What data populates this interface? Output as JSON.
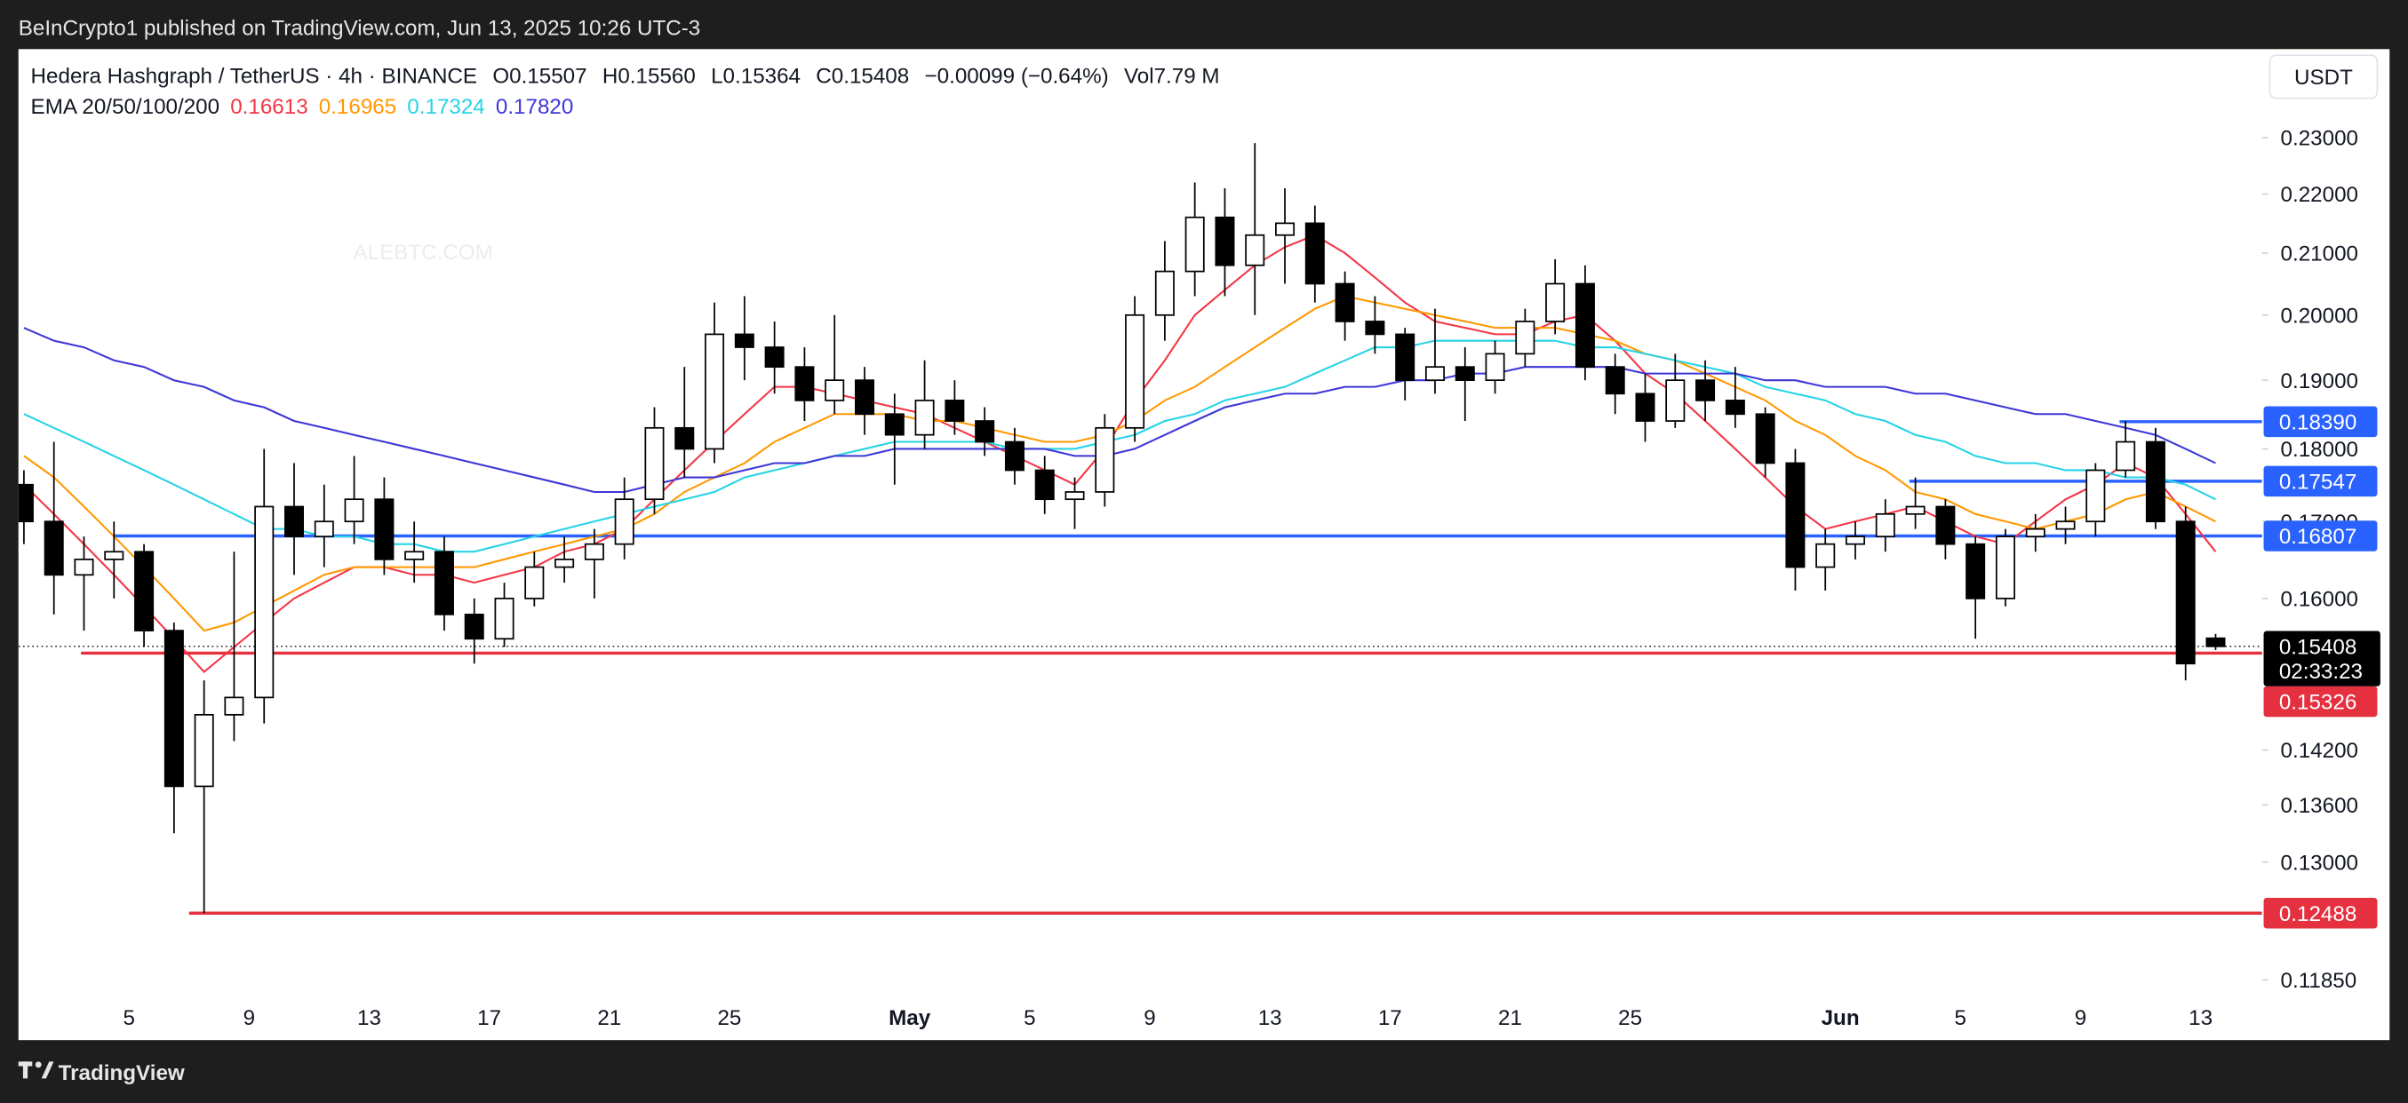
{
  "header": {
    "published": "BeInCrypto1 published on TradingView.com, Jun 13, 2025 10:26 UTC-3",
    "brand": "TradingView"
  },
  "chart_data": {
    "type": "candlestick",
    "symbol": "Hedera Hashgraph / TetherUS · 4h · BINANCE",
    "quote": [
      "O0.15507",
      "H0.15560",
      "L0.15364",
      "C0.15408",
      "−0.00099 (−0.64%)",
      "Vol7.79 M"
    ],
    "indicator": "EMA 20/50/100/200",
    "currency": "USDT",
    "watermark": "ALEBTC.COM",
    "categories": [
      null,
      null,
      null,
      null,
      "5",
      null,
      null,
      null,
      "9",
      null,
      null,
      null,
      "13",
      null,
      null,
      null,
      "17",
      null,
      null,
      null,
      "21",
      null,
      null,
      null,
      "25",
      null,
      null,
      null,
      null,
      null,
      "May",
      null,
      null,
      null,
      "5",
      null,
      null,
      null,
      "9",
      null,
      null,
      null,
      "13",
      null,
      null,
      null,
      "17",
      null,
      null,
      null,
      "21",
      null,
      null,
      null,
      "25",
      null,
      null,
      null,
      null,
      null,
      null,
      "Jun",
      null,
      null,
      null,
      "5",
      null,
      null,
      null,
      "9",
      null,
      null,
      null,
      "13"
    ],
    "open": [
      0.175,
      0.17,
      0.163,
      0.165,
      0.166,
      0.156,
      0.138,
      0.146,
      0.148,
      0.172,
      0.168,
      0.17,
      0.173,
      0.165,
      0.166,
      0.158,
      0.155,
      0.16,
      0.164,
      0.165,
      0.167,
      0.173,
      0.183,
      0.18,
      0.197,
      0.195,
      0.192,
      0.187,
      0.19,
      0.185,
      0.182,
      0.187,
      0.184,
      0.181,
      0.177,
      0.173,
      0.174,
      0.183,
      0.2,
      0.207,
      0.216,
      0.208,
      0.213,
      0.215,
      0.205,
      0.199,
      0.197,
      0.19,
      0.192,
      0.19,
      0.194,
      0.199,
      0.205,
      0.192,
      0.188,
      0.184,
      0.19,
      0.187,
      0.185,
      0.178,
      0.164,
      0.167,
      0.168,
      0.171,
      0.172,
      0.167,
      0.16,
      0.168,
      0.169,
      0.17,
      0.177,
      0.181,
      0.17,
      0.15507
    ],
    "high": [
      0.177,
      0.181,
      0.168,
      0.17,
      0.167,
      0.157,
      0.15,
      0.166,
      0.18,
      0.178,
      0.175,
      0.179,
      0.176,
      0.17,
      0.168,
      0.16,
      0.162,
      0.166,
      0.168,
      0.169,
      0.176,
      0.186,
      0.192,
      0.202,
      0.203,
      0.199,
      0.195,
      0.2,
      0.192,
      0.188,
      0.193,
      0.19,
      0.186,
      0.183,
      0.179,
      0.176,
      0.185,
      0.203,
      0.212,
      0.222,
      0.221,
      0.229,
      0.221,
      0.218,
      0.207,
      0.203,
      0.198,
      0.201,
      0.195,
      0.196,
      0.201,
      0.209,
      0.208,
      0.194,
      0.191,
      0.194,
      0.193,
      0.192,
      0.186,
      0.18,
      0.169,
      0.17,
      0.173,
      0.176,
      0.173,
      0.168,
      0.169,
      0.171,
      0.172,
      0.178,
      0.184,
      0.183,
      0.172,
      0.1556
    ],
    "low": [
      0.167,
      0.158,
      0.156,
      0.16,
      0.154,
      0.133,
      0.1249,
      0.143,
      0.145,
      0.163,
      0.164,
      0.167,
      0.163,
      0.162,
      0.156,
      0.152,
      0.154,
      0.159,
      0.162,
      0.16,
      0.165,
      0.171,
      0.176,
      0.178,
      0.19,
      0.188,
      0.184,
      0.185,
      0.182,
      0.175,
      0.18,
      0.182,
      0.179,
      0.175,
      0.171,
      0.169,
      0.172,
      0.181,
      0.196,
      0.203,
      0.203,
      0.2,
      0.205,
      0.202,
      0.196,
      0.194,
      0.187,
      0.188,
      0.184,
      0.188,
      0.192,
      0.197,
      0.19,
      0.185,
      0.181,
      0.183,
      0.184,
      0.183,
      0.176,
      0.161,
      0.161,
      0.165,
      0.166,
      0.169,
      0.165,
      0.155,
      0.159,
      0.166,
      0.167,
      0.168,
      0.176,
      0.169,
      0.15,
      0.15364
    ],
    "close": [
      0.17,
      0.163,
      0.165,
      0.166,
      0.156,
      0.138,
      0.146,
      0.148,
      0.172,
      0.168,
      0.17,
      0.173,
      0.165,
      0.166,
      0.158,
      0.155,
      0.16,
      0.164,
      0.165,
      0.167,
      0.173,
      0.183,
      0.18,
      0.197,
      0.195,
      0.192,
      0.187,
      0.19,
      0.185,
      0.182,
      0.187,
      0.184,
      0.181,
      0.177,
      0.173,
      0.174,
      0.183,
      0.2,
      0.207,
      0.216,
      0.208,
      0.213,
      0.215,
      0.205,
      0.199,
      0.197,
      0.19,
      0.192,
      0.19,
      0.194,
      0.199,
      0.205,
      0.192,
      0.188,
      0.184,
      0.19,
      0.187,
      0.185,
      0.178,
      0.164,
      0.167,
      0.168,
      0.171,
      0.172,
      0.167,
      0.16,
      0.168,
      0.169,
      0.17,
      0.177,
      0.181,
      0.17,
      0.152,
      0.15408
    ],
    "up_color": "#ffffff",
    "down_color": "#000000",
    "series": [
      {
        "color": "#f23645",
        "legend_value": "0.16613",
        "values": [
          0.175,
          0.171,
          0.167,
          0.163,
          0.159,
          0.155,
          0.151,
          0.154,
          0.157,
          0.16,
          0.162,
          0.164,
          0.164,
          0.163,
          0.163,
          0.162,
          0.163,
          0.164,
          0.166,
          0.167,
          0.169,
          0.173,
          0.177,
          0.181,
          0.185,
          0.189,
          0.189,
          0.188,
          0.187,
          0.186,
          0.185,
          0.183,
          0.181,
          0.179,
          0.177,
          0.175,
          0.18,
          0.187,
          0.193,
          0.2,
          0.204,
          0.208,
          0.211,
          0.213,
          0.21,
          0.206,
          0.202,
          0.199,
          0.198,
          0.197,
          0.197,
          0.199,
          0.2,
          0.196,
          0.191,
          0.188,
          0.184,
          0.18,
          0.176,
          0.172,
          0.169,
          0.17,
          0.171,
          0.172,
          0.17,
          0.168,
          0.167,
          0.17,
          0.173,
          0.175,
          0.178,
          0.176,
          0.171,
          0.166
        ]
      },
      {
        "color": "#ff9800",
        "legend_value": "0.16965",
        "values": [
          0.179,
          0.176,
          0.172,
          0.168,
          0.164,
          0.16,
          0.156,
          0.157,
          0.159,
          0.161,
          0.163,
          0.164,
          0.164,
          0.164,
          0.164,
          0.164,
          0.165,
          0.166,
          0.167,
          0.168,
          0.169,
          0.171,
          0.174,
          0.176,
          0.178,
          0.181,
          0.183,
          0.185,
          0.185,
          0.185,
          0.184,
          0.184,
          0.183,
          0.182,
          0.181,
          0.181,
          0.182,
          0.184,
          0.187,
          0.189,
          0.192,
          0.195,
          0.198,
          0.201,
          0.203,
          0.202,
          0.201,
          0.2,
          0.199,
          0.198,
          0.198,
          0.198,
          0.197,
          0.196,
          0.194,
          0.193,
          0.191,
          0.189,
          0.187,
          0.184,
          0.182,
          0.179,
          0.177,
          0.174,
          0.173,
          0.171,
          0.17,
          0.169,
          0.17,
          0.171,
          0.173,
          0.174,
          0.172,
          0.17
        ]
      },
      {
        "color": "#26d3e6",
        "legend_value": "0.17324",
        "values": [
          0.185,
          0.183,
          0.181,
          0.179,
          0.177,
          0.175,
          0.173,
          0.171,
          0.169,
          0.169,
          0.168,
          0.168,
          0.167,
          0.167,
          0.166,
          0.166,
          0.167,
          0.168,
          0.169,
          0.17,
          0.171,
          0.172,
          0.173,
          0.174,
          0.176,
          0.177,
          0.178,
          0.179,
          0.18,
          0.181,
          0.181,
          0.181,
          0.181,
          0.18,
          0.18,
          0.18,
          0.181,
          0.182,
          0.184,
          0.185,
          0.187,
          0.188,
          0.189,
          0.191,
          0.193,
          0.195,
          0.195,
          0.196,
          0.196,
          0.196,
          0.196,
          0.196,
          0.195,
          0.195,
          0.194,
          0.193,
          0.192,
          0.191,
          0.189,
          0.188,
          0.187,
          0.185,
          0.184,
          0.182,
          0.181,
          0.179,
          0.178,
          0.178,
          0.177,
          0.177,
          0.176,
          0.176,
          0.175,
          0.173
        ]
      },
      {
        "color": "#3d36d6",
        "legend_value": "0.17820",
        "values": [
          0.198,
          0.196,
          0.195,
          0.193,
          0.192,
          0.19,
          0.189,
          0.187,
          0.186,
          0.184,
          0.183,
          0.182,
          0.181,
          0.18,
          0.179,
          0.178,
          0.177,
          0.176,
          0.175,
          0.174,
          0.174,
          0.175,
          0.176,
          0.176,
          0.177,
          0.178,
          0.178,
          0.179,
          0.179,
          0.18,
          0.18,
          0.18,
          0.18,
          0.18,
          0.18,
          0.179,
          0.179,
          0.18,
          0.182,
          0.184,
          0.186,
          0.187,
          0.188,
          0.188,
          0.189,
          0.189,
          0.19,
          0.19,
          0.191,
          0.191,
          0.192,
          0.192,
          0.192,
          0.192,
          0.191,
          0.191,
          0.191,
          0.191,
          0.19,
          0.19,
          0.189,
          0.189,
          0.189,
          0.188,
          0.188,
          0.187,
          0.186,
          0.185,
          0.185,
          0.184,
          0.183,
          0.182,
          0.18,
          0.178
        ]
      }
    ],
    "ylim": [
      0.1176,
      0.2466
    ],
    "log_scale": true,
    "grid": false,
    "yticks": [
      {
        "value": 0.23,
        "label": "0.23000"
      },
      {
        "value": 0.22,
        "label": "0.22000"
      },
      {
        "value": 0.21,
        "label": "0.21000"
      },
      {
        "value": 0.2,
        "label": "0.20000"
      },
      {
        "value": 0.19,
        "label": "0.19000"
      },
      {
        "value": 0.18,
        "label": "0.18000"
      },
      {
        "value": 0.17,
        "label": "0.17000"
      },
      {
        "value": 0.16,
        "label": "0.16000"
      },
      {
        "value": 0.142,
        "label": "0.14200"
      },
      {
        "value": 0.136,
        "label": "0.13600"
      },
      {
        "value": 0.13,
        "label": "0.13000"
      },
      {
        "value": 0.1185,
        "label": "0.11850"
      }
    ],
    "levels": [
      {
        "value": 0.1839,
        "label": "0.18390",
        "color": "#2962ff",
        "from": 70.3
      },
      {
        "value": 0.17547,
        "color": "#2962ff",
        "from": 63.3
      },
      {
        "value": 0.16807,
        "color": "#2962ff",
        "from": 3.5
      },
      {
        "value": 0.15326,
        "color": "#e5303f",
        "from": 2.4
      },
      {
        "value": 0.12488,
        "color": "#e5303f",
        "from": 6.0
      }
    ],
    "current_price": 0.15408,
    "countdown": "02:33:23"
  }
}
